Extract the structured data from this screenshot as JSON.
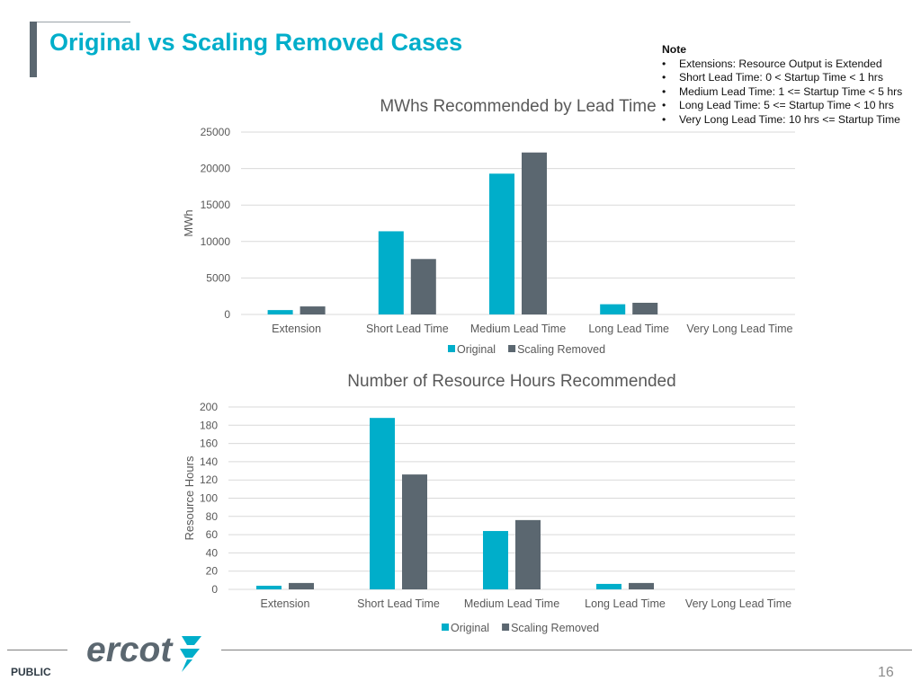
{
  "slide": {
    "title": "Original vs Scaling Removed Cases",
    "note_heading": "Note",
    "note_items": [
      "Extensions: Resource Output is Extended",
      "Short Lead Time: 0 < Startup Time < 1 hrs",
      "Medium Lead Time: 1 <= Startup Time < 5 hrs",
      "Long Lead Time: 5 <= Startup Time < 10 hrs",
      "Very Long Lead Time: 10 hrs <= Startup Time"
    ],
    "footer_label": "PUBLIC",
    "page_number": "16",
    "logo_text": "ercot"
  },
  "colors": {
    "original": "#00aeca",
    "scaling_removed": "#5b6770",
    "title": "#00aeca"
  },
  "chart_data": [
    {
      "type": "bar",
      "title": "MWhs Recommended by Lead Time",
      "xlabel": "",
      "ylabel": "MWh",
      "ylim": [
        0,
        25000
      ],
      "yticks": [
        0,
        5000,
        10000,
        15000,
        20000,
        25000
      ],
      "grid": true,
      "legend_position": "bottom",
      "categories": [
        "Extension",
        "Short Lead Time",
        "Medium Lead Time",
        "Long Lead Time",
        "Very Long Lead Time"
      ],
      "series": [
        {
          "name": "Original",
          "values": [
            600,
            11400,
            19300,
            1400,
            0
          ]
        },
        {
          "name": "Scaling Removed",
          "values": [
            1100,
            7600,
            22200,
            1600,
            0
          ]
        }
      ]
    },
    {
      "type": "bar",
      "title": "Number of Resource Hours Recommended",
      "xlabel": "",
      "ylabel": "Resource Hours",
      "ylim": [
        0,
        200
      ],
      "yticks": [
        0,
        20,
        40,
        60,
        80,
        100,
        120,
        140,
        160,
        180,
        200
      ],
      "grid": true,
      "legend_position": "bottom",
      "categories": [
        "Extension",
        "Short Lead Time",
        "Medium Lead Time",
        "Long Lead Time",
        "Very Long Lead Time"
      ],
      "series": [
        {
          "name": "Original",
          "values": [
            4,
            188,
            64,
            6,
            0
          ]
        },
        {
          "name": "Scaling Removed",
          "values": [
            7,
            126,
            76,
            7,
            0
          ]
        }
      ]
    }
  ]
}
